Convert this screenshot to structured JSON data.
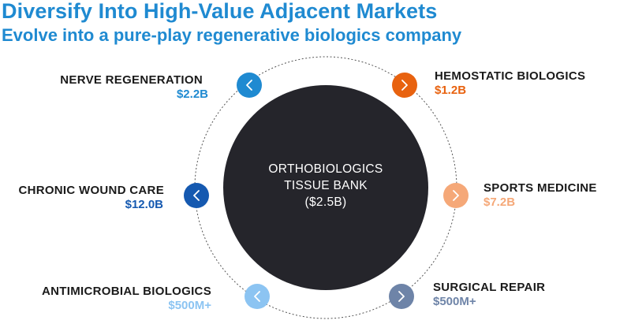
{
  "header": {
    "title": "Diversify Into High-Value Adjacent Markets",
    "subtitle": "Evolve into a pure-play regenerative biologics company"
  },
  "hub": {
    "line1": "ORTHOBIOLOGICS",
    "line2": "TISSUE BANK",
    "line3": "($2.5B)",
    "color": "#25252b"
  },
  "markets": [
    {
      "name": "NERVE REGENERATION",
      "value": "$2.2B",
      "color": "#1f8ad1",
      "icon": "chevron-left-icon"
    },
    {
      "name": "HEMOSTATIC BIOLOGICS",
      "value": "$1.2B",
      "color": "#e8620f",
      "icon": "chevron-right-icon"
    },
    {
      "name": "CHRONIC WOUND CARE",
      "value": "$12.0B",
      "color": "#1559b0",
      "icon": "chevron-left-icon"
    },
    {
      "name": "SPORTS MEDICINE",
      "value": "$7.2B",
      "color": "#f5a878",
      "icon": "chevron-right-icon"
    },
    {
      "name": "ANTIMICROBIAL BIOLOGICS",
      "value": "$500M+",
      "color": "#8cc4f2",
      "icon": "chevron-left-icon"
    },
    {
      "name": "SURGICAL REPAIR",
      "value": "$500M+",
      "color": "#6e84a8",
      "icon": "chevron-right-icon"
    }
  ]
}
